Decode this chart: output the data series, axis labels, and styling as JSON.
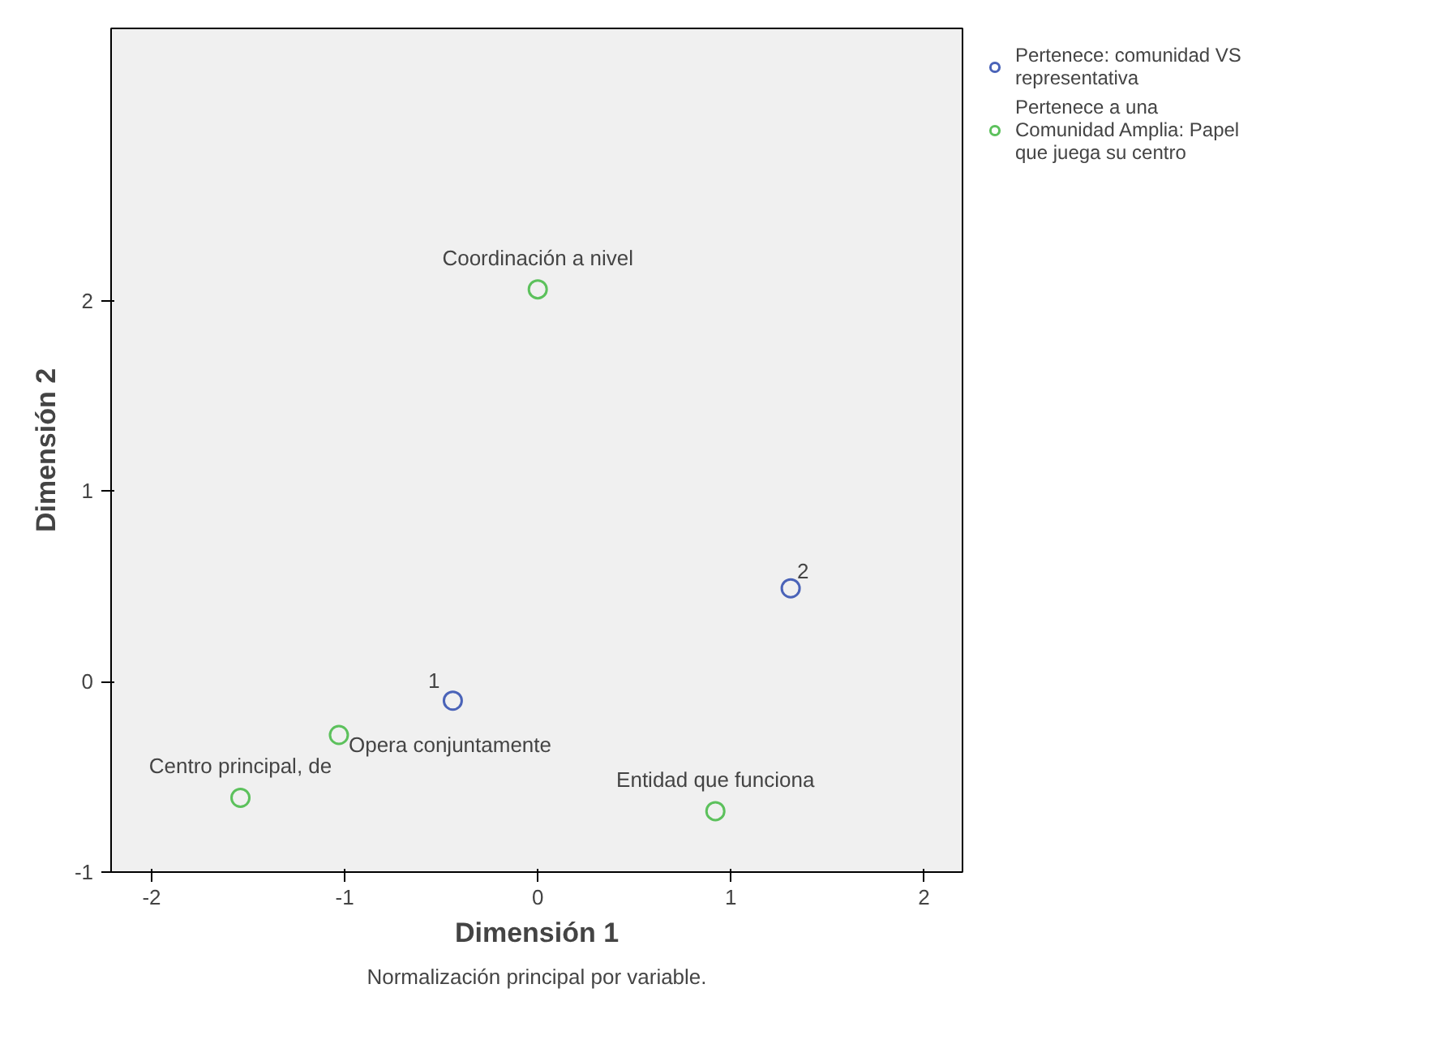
{
  "chart_data": {
    "type": "scatter",
    "xlabel": "Dimensión 1",
    "ylabel": "Dimensión 2",
    "xlim": [
      -2.21,
      2.2
    ],
    "ylim": [
      -1,
      3.43
    ],
    "xticks": [
      -2,
      -1,
      0,
      1,
      2
    ],
    "yticks": [
      -1,
      0,
      1,
      2
    ],
    "grid": false,
    "legend": "top right",
    "marker": "circle",
    "series": [
      {
        "name": "Pertenece: comunidad VS representativa",
        "color": "#4a63b8",
        "x": [
          -0.44,
          1.31
        ],
        "values": [
          -0.1,
          0.49
        ]
      },
      {
        "name": "Pertenece a una Comunidad Amplia: Papel que juega su centro",
        "color": "#5cc15c",
        "x": [
          0.0,
          -1.03,
          -1.54,
          0.92
        ],
        "values": [
          2.06,
          -0.28,
          -0.61,
          -0.68
        ]
      }
    ],
    "annotations": [
      {
        "text": "1",
        "x": -0.44,
        "y": -0.1
      },
      {
        "text": "2",
        "x": 1.31,
        "y": 0.49
      },
      {
        "text": "Coordinación a nivel",
        "x": 0.0,
        "y": 2.06
      },
      {
        "text": "Opera conjuntamente",
        "x": -1.03,
        "y": -0.28
      },
      {
        "text": "Centro principal, de",
        "x": -1.54,
        "y": -0.61
      },
      {
        "text": "Entidad que funciona",
        "x": 0.92,
        "y": -0.68
      },
      "Normalización principal por variable."
    ]
  }
}
